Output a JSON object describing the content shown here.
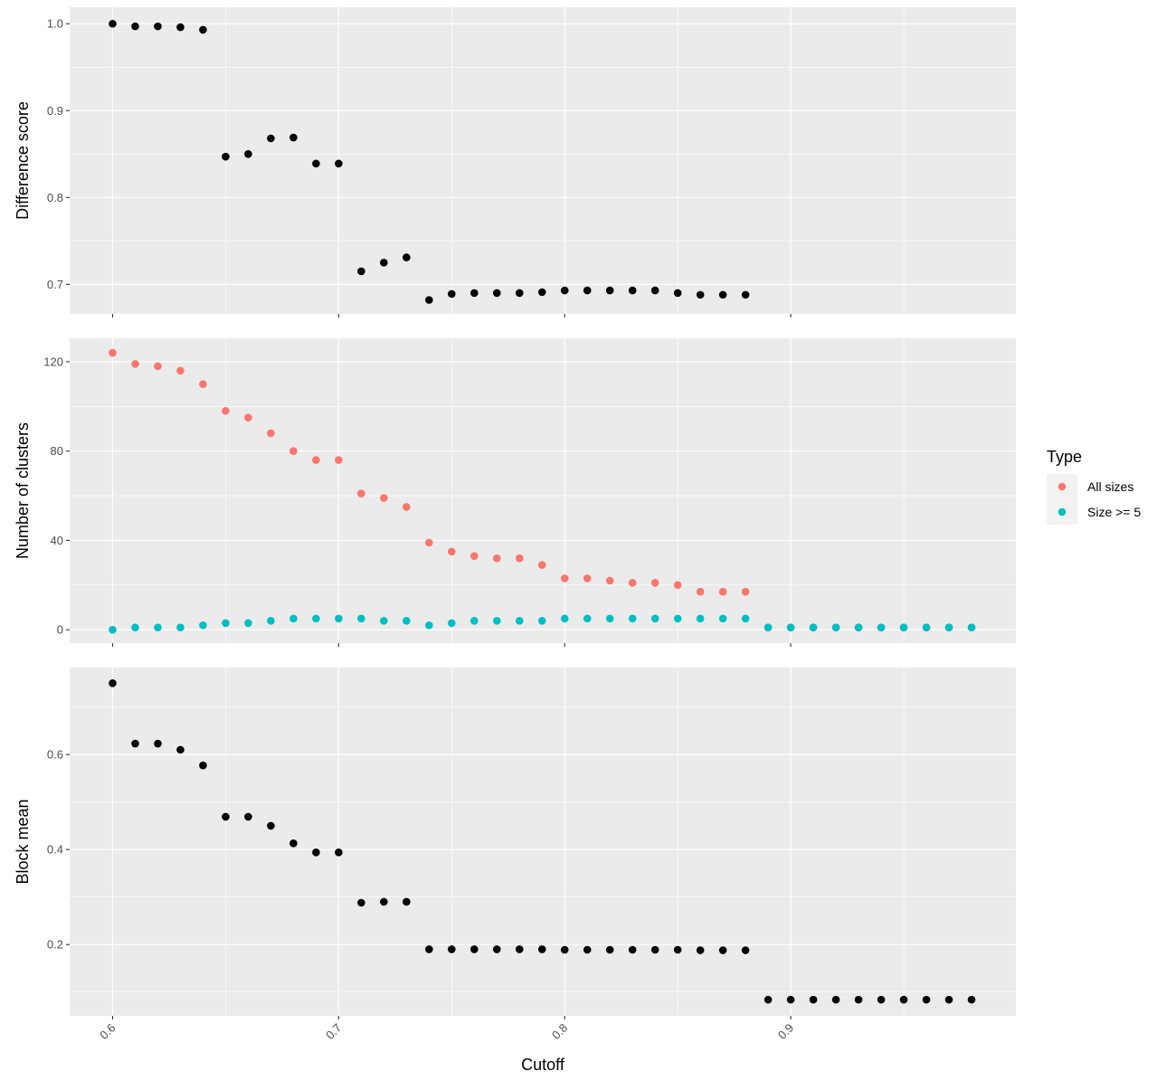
{
  "chart_data": [
    {
      "type": "scatter",
      "ylabel": "Difference score",
      "xlim": [
        0.581,
        0.9996
      ],
      "ylim": [
        0.666,
        1.019
      ],
      "yticks": [
        0.7,
        0.8,
        0.9,
        1.0
      ],
      "ytick_labels": [
        "0.7",
        "0.8",
        "0.9",
        "1.0"
      ],
      "series": [
        {
          "name": "Difference score",
          "color": "#000000",
          "x": [
            0.6,
            0.61,
            0.62,
            0.63,
            0.64,
            0.65,
            0.66,
            0.67,
            0.68,
            0.69,
            0.7,
            0.71,
            0.72,
            0.73,
            0.74,
            0.75,
            0.76,
            0.77,
            0.78,
            0.79,
            0.8,
            0.81,
            0.82,
            0.83,
            0.84,
            0.85,
            0.86,
            0.87,
            0.88
          ],
          "y": [
            1.0,
            0.997,
            0.997,
            0.996,
            0.993,
            0.847,
            0.85,
            0.868,
            0.869,
            0.839,
            0.839,
            0.715,
            0.725,
            0.731,
            0.682,
            0.689,
            0.69,
            0.69,
            0.69,
            0.691,
            0.693,
            0.693,
            0.693,
            0.693,
            0.693,
            0.69,
            0.688,
            0.688,
            0.688
          ]
        }
      ]
    },
    {
      "type": "scatter",
      "ylabel": "Number of clusters",
      "xlim": [
        0.581,
        0.9996
      ],
      "ylim": [
        -6,
        130.5
      ],
      "yticks": [
        0,
        40,
        80,
        120
      ],
      "ytick_labels": [
        "0",
        "40",
        "80",
        "120"
      ],
      "legend": {
        "title": "Type",
        "placement": "right",
        "entries": [
          "All sizes",
          "Size >= 5"
        ]
      },
      "series": [
        {
          "name": "All sizes",
          "color": "#F8766D",
          "x": [
            0.6,
            0.61,
            0.62,
            0.63,
            0.64,
            0.65,
            0.66,
            0.67,
            0.68,
            0.69,
            0.7,
            0.71,
            0.72,
            0.73,
            0.74,
            0.75,
            0.76,
            0.77,
            0.78,
            0.79,
            0.8,
            0.81,
            0.82,
            0.83,
            0.84,
            0.85,
            0.86,
            0.87,
            0.88,
            0.89,
            0.9,
            0.91,
            0.92,
            0.93,
            0.94,
            0.95,
            0.96,
            0.97,
            0.98
          ],
          "y": [
            124,
            119,
            118,
            116,
            110,
            98,
            95,
            88,
            80,
            76,
            76,
            61,
            59,
            55,
            39,
            35,
            33,
            32,
            32,
            29,
            23,
            23,
            22,
            21,
            21,
            20,
            17,
            17,
            17,
            1,
            1,
            1,
            1,
            1,
            1,
            1,
            1,
            1,
            1
          ]
        },
        {
          "name": "Size >= 5",
          "color": "#00BFC4",
          "x": [
            0.6,
            0.61,
            0.62,
            0.63,
            0.64,
            0.65,
            0.66,
            0.67,
            0.68,
            0.69,
            0.7,
            0.71,
            0.72,
            0.73,
            0.74,
            0.75,
            0.76,
            0.77,
            0.78,
            0.79,
            0.8,
            0.81,
            0.82,
            0.83,
            0.84,
            0.85,
            0.86,
            0.87,
            0.88,
            0.89,
            0.9,
            0.91,
            0.92,
            0.93,
            0.94,
            0.95,
            0.96,
            0.97,
            0.98
          ],
          "y": [
            0,
            1,
            1,
            1,
            2,
            3,
            3,
            4,
            5,
            5,
            5,
            5,
            4,
            4,
            2,
            3,
            4,
            4,
            4,
            4,
            5,
            5,
            5,
            5,
            5,
            5,
            5,
            5,
            5,
            1,
            1,
            1,
            1,
            1,
            1,
            1,
            1,
            1,
            1
          ]
        }
      ]
    },
    {
      "type": "scatter",
      "ylabel": "Block mean",
      "xlabel": "Cutoff",
      "xlim": [
        0.581,
        0.9996
      ],
      "ylim": [
        0.05,
        0.783
      ],
      "yticks": [
        0.2,
        0.4,
        0.6
      ],
      "ytick_labels": [
        "0.2",
        "0.4",
        "0.6"
      ],
      "xticks": [
        0.6,
        0.7,
        0.8,
        0.9
      ],
      "xtick_labels": [
        "0.6",
        "0.7",
        "0.8",
        "0.9"
      ],
      "series": [
        {
          "name": "Block mean",
          "color": "#000000",
          "x": [
            0.6,
            0.61,
            0.62,
            0.63,
            0.64,
            0.65,
            0.66,
            0.67,
            0.68,
            0.69,
            0.7,
            0.71,
            0.72,
            0.73,
            0.74,
            0.75,
            0.76,
            0.77,
            0.78,
            0.79,
            0.8,
            0.81,
            0.82,
            0.83,
            0.84,
            0.85,
            0.86,
            0.87,
            0.88,
            0.89,
            0.9,
            0.91,
            0.92,
            0.93,
            0.94,
            0.95,
            0.96,
            0.97,
            0.98
          ],
          "y": [
            0.75,
            0.623,
            0.623,
            0.61,
            0.577,
            0.469,
            0.469,
            0.45,
            0.413,
            0.394,
            0.394,
            0.288,
            0.29,
            0.29,
            0.19,
            0.19,
            0.19,
            0.19,
            0.19,
            0.19,
            0.189,
            0.189,
            0.189,
            0.189,
            0.189,
            0.189,
            0.188,
            0.188,
            0.188,
            0.084,
            0.084,
            0.084,
            0.084,
            0.084,
            0.084,
            0.084,
            0.084,
            0.084,
            0.084
          ]
        }
      ]
    }
  ]
}
